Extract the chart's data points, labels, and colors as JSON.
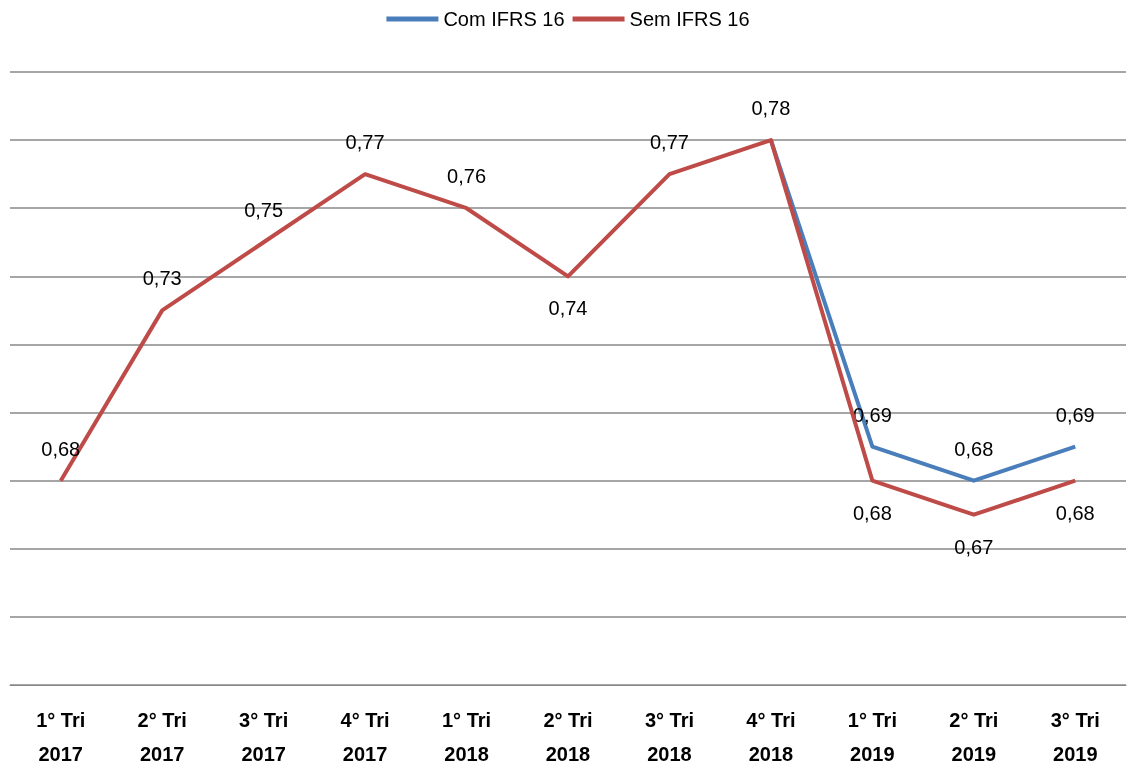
{
  "chart_data": {
    "type": "line",
    "categories": [
      "1° Tri 2017",
      "2° Tri 2017",
      "3° Tri 2017",
      "4° Tri 2017",
      "1° Tri 2018",
      "2° Tri 2018",
      "3° Tri 2018",
      "4° Tri 2018",
      "1° Tri 2019",
      "2° Tri 2019",
      "3° Tri 2019"
    ],
    "series": [
      {
        "name": "Com IFRS 16",
        "color": "#4a7ebb",
        "values": [
          null,
          null,
          null,
          null,
          null,
          null,
          null,
          0.78,
          0.69,
          0.68,
          0.69
        ],
        "value_labels": [
          null,
          null,
          null,
          null,
          null,
          null,
          null,
          null,
          "0,69",
          "0,68",
          "0,69"
        ]
      },
      {
        "name": "Sem IFRS 16",
        "color": "#be4b48",
        "values": [
          0.68,
          0.73,
          0.75,
          0.77,
          0.76,
          0.74,
          0.77,
          0.78,
          0.68,
          0.67,
          0.68
        ],
        "value_labels": [
          "0,68",
          "0,73",
          "0,75",
          "0,77",
          "0,76",
          "0,74",
          "0,77",
          "0,78",
          "0,68",
          "0,67",
          "0,68"
        ]
      }
    ],
    "grid": "y",
    "legend": "top",
    "marker": "none",
    "line_style": "solid"
  }
}
